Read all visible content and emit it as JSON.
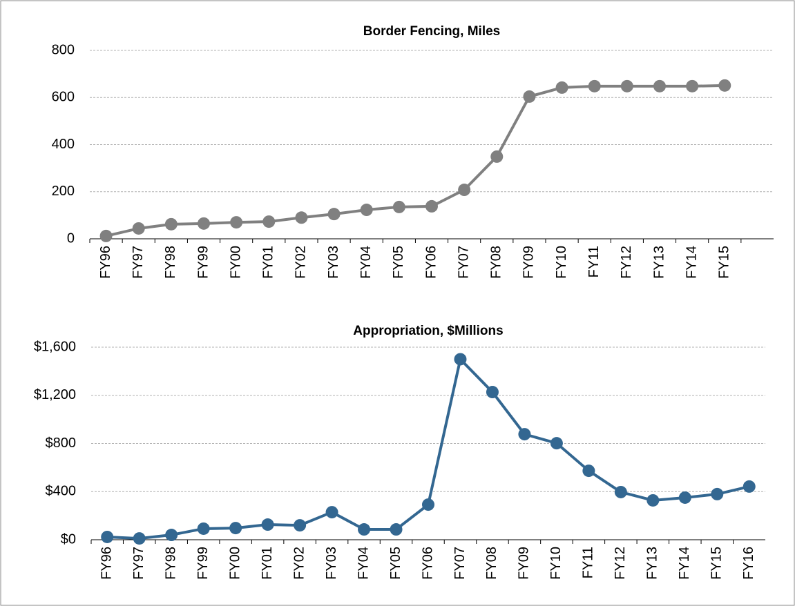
{
  "chart_data": [
    {
      "type": "line",
      "title": "Border Fencing, Miles",
      "categories": [
        "FY96",
        "FY97",
        "FY98",
        "FY99",
        "FY00",
        "FY01",
        "FY02",
        "FY03",
        "FY04",
        "FY05",
        "FY06",
        "FY07",
        "FY08",
        "FY09",
        "FY10",
        "FY11",
        "FY12",
        "FY13",
        "FY14",
        "FY15",
        null
      ],
      "values": [
        12,
        44,
        62,
        65,
        70,
        73,
        90,
        105,
        123,
        135,
        138,
        208,
        349,
        604,
        642,
        648,
        648,
        648,
        648,
        651,
        null
      ],
      "color": "#808080",
      "ylim": [
        0,
        800
      ],
      "yticks": [
        0,
        200,
        400,
        600,
        800
      ],
      "grid": true
    },
    {
      "type": "line",
      "title": "Appropriation, $Millions",
      "categories": [
        "FY96",
        "FY97",
        "FY98",
        "FY99",
        "FY00",
        "FY01",
        "FY02",
        "FY03",
        "FY04",
        "FY05",
        "FY06",
        "FY07",
        "FY08",
        "FY09",
        "FY10",
        "FY11",
        "FY12",
        "FY13",
        "FY14",
        "FY15",
        "FY16"
      ],
      "values": [
        23,
        11,
        40,
        92,
        97,
        126,
        120,
        229,
        86,
        86,
        292,
        1500,
        1227,
        877,
        802,
        573,
        396,
        327,
        350,
        379,
        442
      ],
      "color": "#336791",
      "ylim": [
        0,
        1600
      ],
      "yticks": [
        {
          "value": 0,
          "label": "$0"
        },
        {
          "value": 400,
          "label": "$400"
        },
        {
          "value": 800,
          "label": "$800"
        },
        {
          "value": 1200,
          "label": "$1,200"
        },
        {
          "value": 1600,
          "label": "$1,600"
        }
      ],
      "grid": true
    }
  ]
}
